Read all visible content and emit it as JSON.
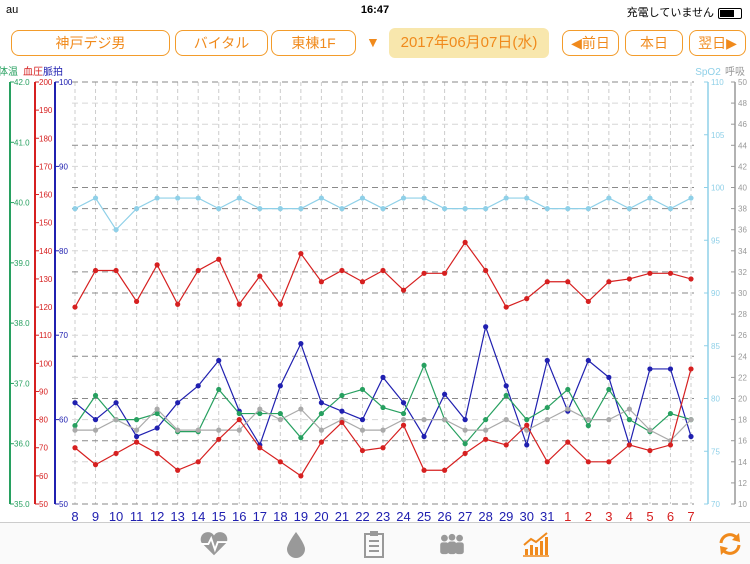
{
  "status": {
    "carrier": "au",
    "time": "16:47",
    "battery": "充電していません"
  },
  "toolbar": {
    "patient": "神戸デジ男",
    "mode": "バイタル",
    "ward": "東棟1F",
    "date": "2017年06月07日(水)",
    "prev": "◀前日",
    "today": "本日",
    "next": "翌日▶",
    "dropdown_icon": "triangle-down"
  },
  "axes": {
    "temp": {
      "label": "体温",
      "color": "#27a060",
      "ticks": [
        "42.0",
        "41.0",
        "40.0",
        "39.0",
        "38.0",
        "37.0",
        "36.0",
        "35.0"
      ]
    },
    "bp": {
      "label": "血圧",
      "color": "#d62020",
      "ticks": [
        "200",
        "190",
        "180",
        "170",
        "160",
        "150",
        "140",
        "130",
        "120",
        "110",
        "100",
        "90",
        "80",
        "70",
        "60",
        "50"
      ]
    },
    "pulse": {
      "label": "脈拍",
      "color": "#2020b0",
      "ticks": [
        "100",
        "90",
        "80",
        "70",
        "60",
        "50"
      ]
    },
    "spo2": {
      "label": "SpO2",
      "color": "#8fd0e8",
      "ticks": [
        "110",
        "105",
        "100",
        "95",
        "90",
        "85",
        "80",
        "75",
        "70"
      ]
    },
    "resp": {
      "label": "呼吸",
      "color": "#999999",
      "ticks": [
        "50",
        "48",
        "46",
        "44",
        "42",
        "40",
        "38",
        "36",
        "34",
        "32",
        "30",
        "28",
        "26",
        "24",
        "22",
        "20",
        "18",
        "16",
        "14",
        "12",
        "10"
      ]
    }
  },
  "chart_data": {
    "type": "line",
    "x": [
      "8",
      "9",
      "10",
      "11",
      "12",
      "13",
      "14",
      "15",
      "16",
      "17",
      "18",
      "19",
      "20",
      "21",
      "22",
      "23",
      "24",
      "25",
      "26",
      "27",
      "28",
      "29",
      "30",
      "31",
      "1",
      "2",
      "3",
      "4",
      "5",
      "6",
      "7"
    ],
    "x_colors": [
      "#2020b0",
      "#2020b0",
      "#2020b0",
      "#2020b0",
      "#2020b0",
      "#2020b0",
      "#2020b0",
      "#2020b0",
      "#2020b0",
      "#2020b0",
      "#2020b0",
      "#2020b0",
      "#2020b0",
      "#2020b0",
      "#2020b0",
      "#2020b0",
      "#2020b0",
      "#2020b0",
      "#2020b0",
      "#2020b0",
      "#2020b0",
      "#2020b0",
      "#2020b0",
      "#2020b0",
      "#d62020",
      "#d62020",
      "#d62020",
      "#d62020",
      "#d62020",
      "#d62020",
      "#d62020"
    ],
    "series": [
      {
        "axis": "spo2",
        "color": "#8fd0e8",
        "values": [
          98,
          99,
          96,
          98,
          99,
          99,
          99,
          98,
          99,
          98,
          98,
          98,
          99,
          98,
          99,
          98,
          99,
          99,
          98,
          98,
          98,
          99,
          99,
          98,
          98,
          98,
          99,
          98,
          99,
          98,
          99
        ]
      },
      {
        "axis": "bp",
        "color": "#d62020",
        "values": [
          120,
          133,
          133,
          122,
          135,
          121,
          133,
          137,
          121,
          131,
          121,
          139,
          129,
          133,
          129,
          133,
          126,
          132,
          132,
          143,
          133,
          120,
          123,
          129,
          129,
          122,
          129,
          130,
          132,
          132,
          130
        ]
      },
      {
        "axis": "pulse",
        "color": "#2020b0",
        "values": [
          62,
          60,
          62,
          58,
          59,
          62,
          64,
          67,
          61,
          57,
          64,
          69,
          62,
          61,
          60,
          65,
          62,
          58,
          63,
          60,
          71,
          64,
          57,
          67,
          61,
          67,
          65,
          57,
          66,
          66,
          58
        ]
      },
      {
        "axis": "temp",
        "color": "#27a060",
        "values": [
          36.3,
          36.8,
          36.4,
          36.4,
          36.5,
          36.2,
          36.2,
          36.9,
          36.5,
          36.5,
          36.5,
          36.1,
          36.5,
          36.8,
          36.9,
          36.6,
          36.5,
          37.3,
          36.4,
          36.0,
          36.4,
          36.8,
          36.4,
          36.6,
          36.9,
          36.3,
          36.9,
          36.4,
          36.2,
          36.5,
          36.4
        ]
      },
      {
        "axis": "resp",
        "color": "#aaaaaa",
        "values": [
          17,
          17,
          18,
          17,
          19,
          17,
          17,
          17,
          17,
          19,
          18,
          19,
          17,
          18,
          17,
          17,
          18,
          18,
          18,
          17,
          17,
          18,
          17,
          18,
          19,
          18,
          18,
          19,
          17,
          16,
          18
        ]
      },
      {
        "axis": "bp",
        "color": "#d62020",
        "values": [
          70,
          64,
          68,
          72,
          68,
          62,
          65,
          73,
          80,
          70,
          65,
          60,
          72,
          79,
          69,
          70,
          78,
          62,
          62,
          68,
          73,
          71,
          78,
          65,
          72,
          65,
          65,
          71,
          69,
          71,
          98
        ]
      }
    ]
  },
  "tabs": [
    {
      "name": "vitals-heart-icon",
      "active": false
    },
    {
      "name": "fluid-drop-icon",
      "active": false
    },
    {
      "name": "clipboard-icon",
      "active": false
    },
    {
      "name": "group-icon",
      "active": false
    },
    {
      "name": "chart-icon",
      "active": true
    },
    {
      "name": "refresh-icon",
      "active": false
    }
  ]
}
